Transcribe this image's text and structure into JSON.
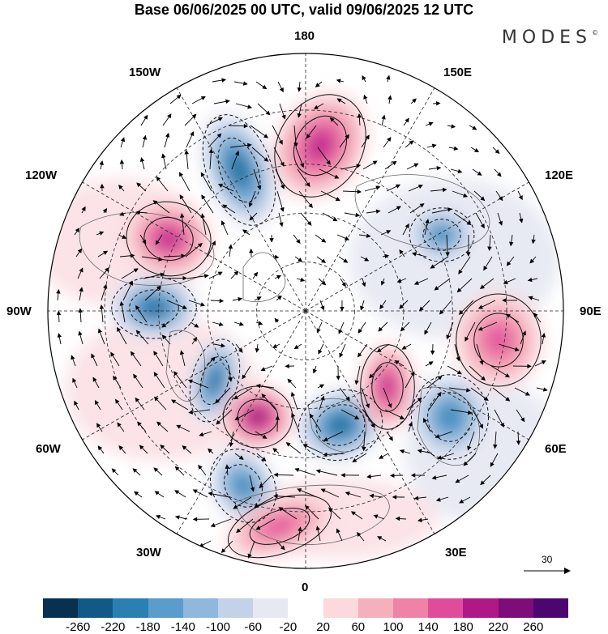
{
  "header": {
    "title": "Base 06/06/2025 00 UTC, valid 09/06/2025 12 UTC",
    "brand": "MODES"
  },
  "map": {
    "projection": "north-polar-stereographic",
    "longitude_labels": {
      "top": "180",
      "bottom": "0",
      "left": "90W",
      "right": "90E",
      "upper_left_1": "150W",
      "upper_left_2": "120W",
      "upper_right_1": "150E",
      "upper_right_2": "120E",
      "lower_left_1": "60W",
      "lower_left_2": "30W",
      "lower_right_1": "60E",
      "lower_right_2": "30E"
    },
    "vector_scale_label": "30",
    "anomaly_centers": [
      {
        "sign": "negative",
        "level": -180,
        "region": "North Pacific / Bering"
      },
      {
        "sign": "positive",
        "level": 150,
        "region": "East Siberia / Chukotka"
      },
      {
        "sign": "positive",
        "level": 160,
        "region": "Western Canada / Alaska"
      },
      {
        "sign": "negative",
        "level": -200,
        "region": "Hudson Bay"
      },
      {
        "sign": "negative",
        "level": -190,
        "region": "Baffin / Labrador"
      },
      {
        "sign": "positive",
        "level": 180,
        "region": "Greenland"
      },
      {
        "sign": "negative",
        "level": -200,
        "region": "Scandinavia / Barents"
      },
      {
        "sign": "positive",
        "level": 170,
        "region": "Western Siberia"
      },
      {
        "sign": "positive",
        "level": 130,
        "region": "Central Siberia"
      },
      {
        "sign": "negative",
        "level": -150,
        "region": "Central Asia"
      },
      {
        "sign": "negative",
        "level": -140,
        "region": "Taymyr / Arctic coast"
      },
      {
        "sign": "negative",
        "level": -150,
        "region": "North Atlantic"
      },
      {
        "sign": "positive",
        "level": 120,
        "region": "Western Europe"
      }
    ]
  },
  "colorbar": {
    "levels": [
      "-260",
      "-220",
      "-180",
      "-140",
      "-100",
      "-60",
      "-20",
      "20",
      "60",
      "100",
      "140",
      "180",
      "220",
      "260"
    ],
    "colors": [
      "#08304f",
      "#115a87",
      "#2a7fb3",
      "#5a9ccb",
      "#8fb8dc",
      "#c3d2e8",
      "#e8e8f3",
      "#ffffff",
      "#fbd9dc",
      "#f4b0bd",
      "#ee82a7",
      "#e04c9c",
      "#b01887",
      "#7d0d78",
      "#4c0670"
    ]
  }
}
